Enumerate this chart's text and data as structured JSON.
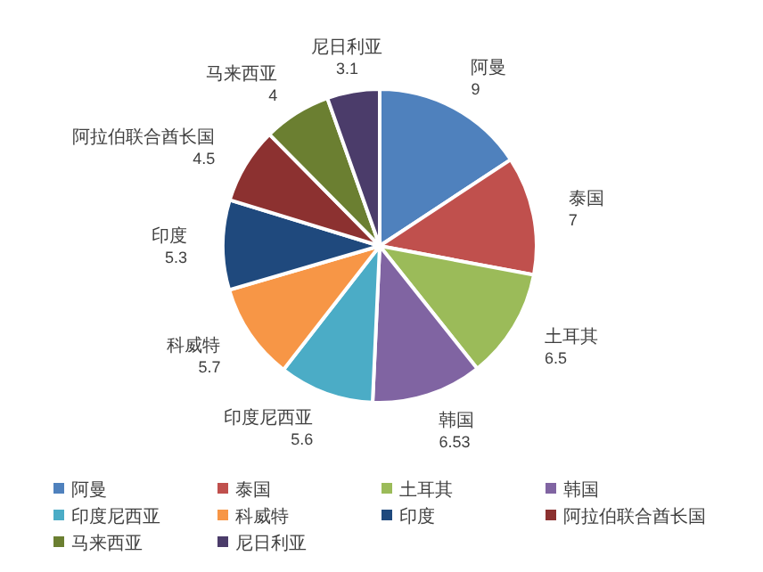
{
  "chart_data": {
    "type": "pie",
    "categories": [
      "阿曼",
      "泰国",
      "土耳其",
      "韩国",
      "印度尼西亚",
      "科威特",
      "印度",
      "阿拉伯联合酋长国",
      "马来西亚",
      "尼日利亚"
    ],
    "values": [
      9,
      7,
      6.5,
      6.53,
      5.6,
      5.7,
      5.3,
      4.5,
      4,
      3.1
    ],
    "colors": [
      "#4f81bd",
      "#c0504d",
      "#9bbb59",
      "#8064a2",
      "#4bacc6",
      "#f79646",
      "#1f497d",
      "#8c3130",
      "#6b7f31",
      "#4b3c6a"
    ],
    "data_labels": true,
    "legend": "bottom"
  }
}
